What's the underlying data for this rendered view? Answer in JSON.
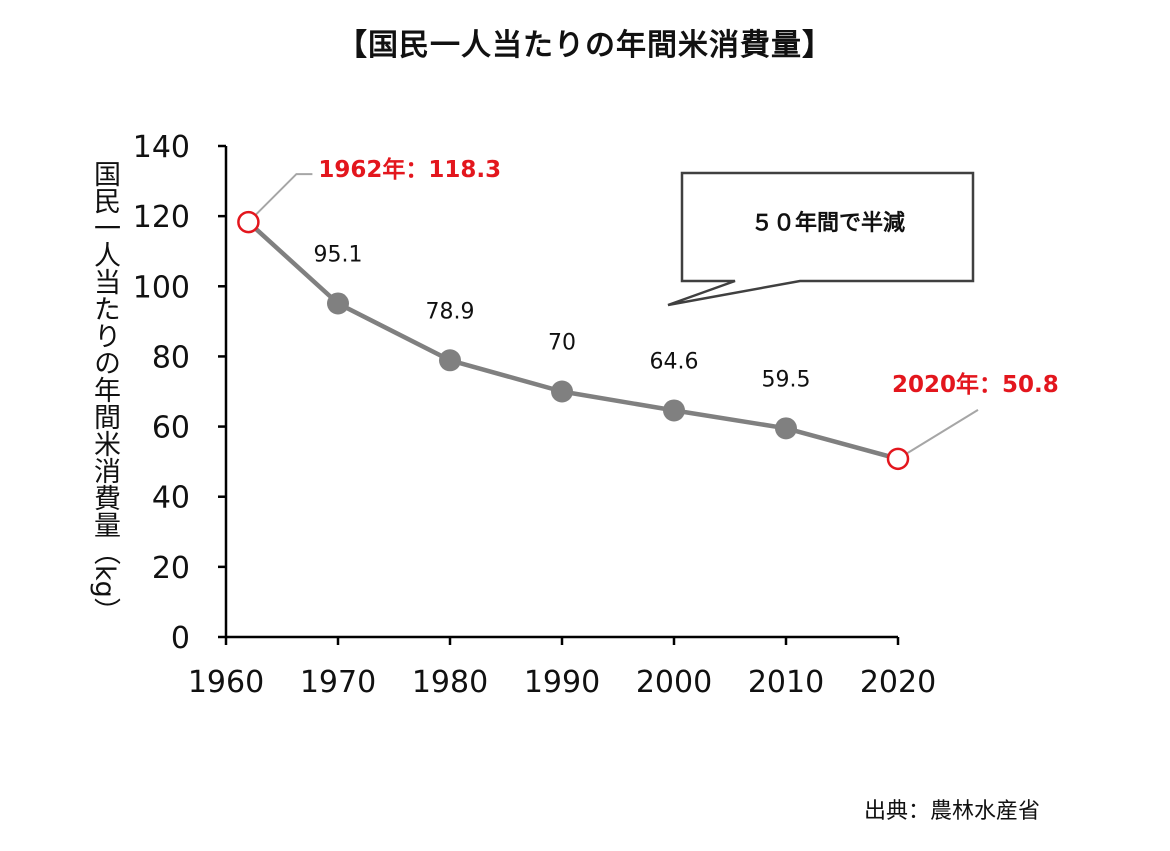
{
  "colors": {
    "line": "#808080",
    "marker": "#808080",
    "highlight": "#e3161d",
    "axis": "#000000",
    "leader": "#a6a6a6"
  },
  "source": "出典：農林水産省",
  "chart_data": {
    "type": "line",
    "title": "【国民一人当たりの年間米消費量】",
    "xlabel": "",
    "ylabel": "国民一人当たりの年間米消費量（kg）",
    "xlim": [
      1960,
      2020
    ],
    "ylim": [
      0,
      140
    ],
    "x_ticks": [
      1960,
      1970,
      1980,
      1990,
      2000,
      2010,
      2020
    ],
    "y_ticks": [
      0,
      20,
      40,
      60,
      80,
      100,
      120,
      140
    ],
    "grid": false,
    "series": [
      {
        "name": "国民一人当たりの年間米消費量",
        "points": [
          {
            "x": 1962,
            "y": 118.3,
            "label": "1962年：118.3",
            "highlight": true
          },
          {
            "x": 1970,
            "y": 95.1,
            "label": "95.1"
          },
          {
            "x": 1980,
            "y": 78.9,
            "label": "78.9"
          },
          {
            "x": 1990,
            "y": 70,
            "label": "70"
          },
          {
            "x": 2000,
            "y": 64.6,
            "label": "64.6"
          },
          {
            "x": 2010,
            "y": 59.5,
            "label": "59.5"
          },
          {
            "x": 2020,
            "y": 50.8,
            "label": "2020年：50.8",
            "highlight": true
          }
        ]
      }
    ],
    "annotations": [
      {
        "text": "５０年間で半減"
      }
    ]
  }
}
